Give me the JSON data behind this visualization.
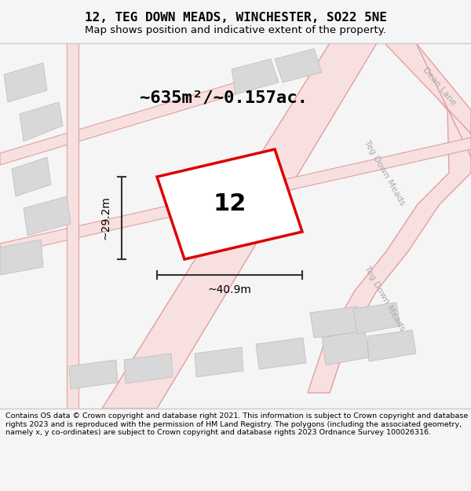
{
  "title": "12, TEG DOWN MEADS, WINCHESTER, SO22 5NE",
  "subtitle": "Map shows position and indicative extent of the property.",
  "area_text": "~635m²/~0.157ac.",
  "property_number": "12",
  "width_label": "~40.9m",
  "height_label": "~29.2m",
  "footer": "Contains OS data © Crown copyright and database right 2021. This information is subject to Crown copyright and database rights 2023 and is reproduced with the permission of HM Land Registry. The polygons (including the associated geometry, namely x, y co-ordinates) are subject to Crown copyright and database rights 2023 Ordnance Survey 100026316.",
  "bg_color": "#f5f5f5",
  "map_bg": "#ffffff",
  "footer_bg": "#f0f0f0",
  "road_color_light": "#f5b8b8",
  "road_color": "#e8a0a0",
  "building_color": "#d8d8d8",
  "property_outline_color": "#dd0000",
  "dimension_color": "#333333",
  "road_label_color": "#aaaaaa",
  "street_name1": "Teg Down Meads",
  "street_name2": "Dean Lane"
}
